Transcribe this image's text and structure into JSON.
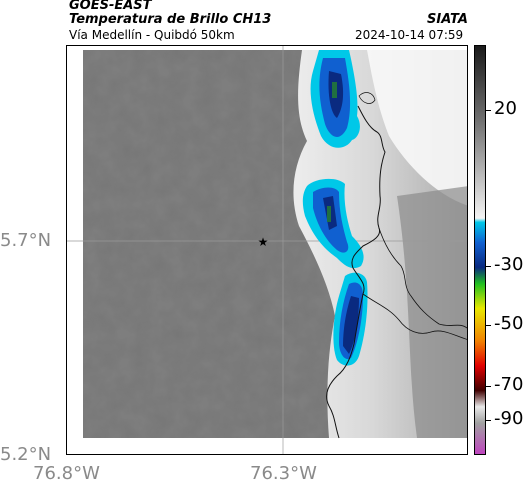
{
  "header": {
    "satellite": "GOES-EAST",
    "product": "Temperatura de Brillo CH13",
    "location": "Vía Medellín - Quibdó 50km",
    "agency": "SIATA",
    "timestamp": "2024-10-14 07:59"
  },
  "axes": {
    "x_ticks": [
      {
        "label": "76.8°W"
      },
      {
        "label": "76.3°W"
      }
    ],
    "y_ticks": [
      {
        "label": "5.7°N"
      },
      {
        "label": "5.2°N"
      }
    ]
  },
  "colorbar": {
    "ticks": [
      "20",
      "-30",
      "-50",
      "-70",
      "-90"
    ],
    "colors": {
      "warm_top": "#1a1a1a",
      "gray_mid": "#9a9a9a",
      "white": "#f4f4f4",
      "cyan": "#00c8e8",
      "blue": "#1060d0",
      "darkblue": "#0a2a80",
      "green": "#20c020",
      "yellow": "#e8e800",
      "orange": "#f08000",
      "red": "#e00000",
      "darkred": "#400000",
      "magenta": "#c040c0"
    }
  },
  "marker": {
    "icon": "star-icon",
    "symbol": "★"
  }
}
